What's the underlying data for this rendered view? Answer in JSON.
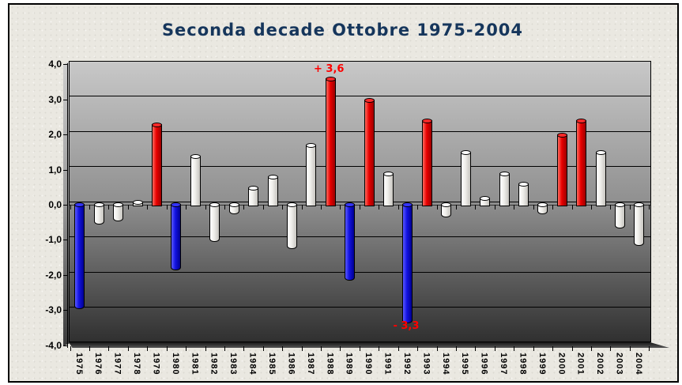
{
  "title": "Seconda decade Ottobre 1975-2004",
  "colors": {
    "title_text": "#16365C",
    "annotation_text": "#FF0000",
    "bar_red": "#E80000",
    "bar_blue": "#1212E0",
    "bar_white": "#F5F4F0",
    "wall_top": "#C8C8C8",
    "wall_bottom": "#303030"
  },
  "chart_data": {
    "type": "bar",
    "title": "Seconda decade Ottobre 1975-2004",
    "xlabel": "",
    "ylabel": "",
    "ylim": [
      -4.0,
      4.0
    ],
    "grid": true,
    "legend": false,
    "style": "3d-cylinder-columns",
    "yticks": [
      "4,0",
      "3,0",
      "2,0",
      "1,0",
      "0,0",
      "-1,0",
      "-2,0",
      "-3,0",
      "-4,0"
    ],
    "ytick_values": [
      4,
      3,
      2,
      1,
      0,
      -1,
      -2,
      -3,
      -4
    ],
    "categories": [
      "1975",
      "1976",
      "1977",
      "1978",
      "1979",
      "1980",
      "1981",
      "1982",
      "1983",
      "1984",
      "1985",
      "1986",
      "1987",
      "1988",
      "1989",
      "1990",
      "1991",
      "1992",
      "1993",
      "1994",
      "1995",
      "1996",
      "1997",
      "1998",
      "1999",
      "2000",
      "2001",
      "2002",
      "2003",
      "2004"
    ],
    "values": [
      -2.9,
      -0.5,
      -0.4,
      0.1,
      2.3,
      -1.8,
      1.4,
      -1.0,
      -0.2,
      0.5,
      0.8,
      -1.2,
      1.7,
      3.6,
      -2.1,
      3.0,
      0.9,
      -3.3,
      2.4,
      -0.3,
      1.5,
      0.2,
      0.9,
      0.6,
      -0.2,
      2.0,
      2.4,
      1.5,
      -0.6,
      -1.1
    ],
    "bar_colors": [
      "blue",
      "white",
      "white",
      "white",
      "red",
      "blue",
      "white",
      "white",
      "white",
      "white",
      "white",
      "white",
      "white",
      "red",
      "blue",
      "red",
      "white",
      "blue",
      "red",
      "white",
      "white",
      "white",
      "white",
      "white",
      "white",
      "red",
      "red",
      "white",
      "white",
      "white"
    ],
    "annotations": [
      {
        "category": "1988",
        "text": "+ 3,6",
        "position": "above-bar"
      },
      {
        "category": "1992",
        "text": "- 3,3",
        "position": "below-bar"
      }
    ]
  }
}
